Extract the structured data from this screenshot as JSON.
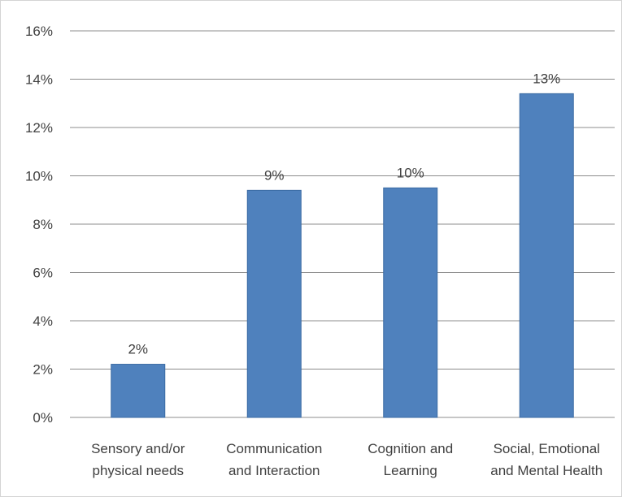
{
  "chart_data": {
    "type": "bar",
    "title": "",
    "xlabel": "",
    "ylabel": "",
    "categories": [
      [
        "Sensory and/or",
        "physical needs"
      ],
      [
        "Communication",
        "and Interaction"
      ],
      [
        "Cognition and",
        "Learning"
      ],
      [
        "Social, Emotional",
        "and Mental Health"
      ]
    ],
    "values": [
      2.2,
      9.4,
      9.5,
      13.4
    ],
    "data_labels": [
      "2%",
      "9%",
      "10%",
      "13%"
    ],
    "ylim": [
      0,
      16
    ],
    "y_ticks": [
      0,
      2,
      4,
      6,
      8,
      10,
      12,
      14,
      16
    ],
    "y_tick_labels": [
      "0%",
      "2%",
      "4%",
      "6%",
      "8%",
      "10%",
      "12%",
      "14%",
      "16%"
    ],
    "grid": true,
    "legend": "none",
    "colors": {
      "bar": "#4f81bd",
      "bar_edge": "#3a6aa3",
      "grid": "#8c8c8c",
      "axis": "#8c8c8c",
      "text": "#404040"
    }
  }
}
